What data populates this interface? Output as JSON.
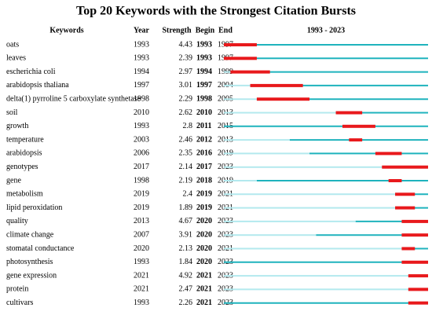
{
  "title": "Top 20 Keywords with the Strongest Citation Bursts",
  "header": {
    "keyword": "Keywords",
    "year": "Year",
    "strength": "Strength",
    "begin": "Begin",
    "end": "End",
    "timeline": "1993 - 2023"
  },
  "timeline": {
    "start": 1993,
    "end": 2023
  },
  "rows": [
    {
      "keyword": "oats",
      "year": 1993,
      "strength": 4.43,
      "begin": 1993,
      "end": 1997
    },
    {
      "keyword": "leaves",
      "year": 1993,
      "strength": 2.39,
      "begin": 1993,
      "end": 1997
    },
    {
      "keyword": "escherichia coli",
      "year": 1994,
      "strength": 2.97,
      "begin": 1994,
      "end": 1999
    },
    {
      "keyword": "arabidopsis thaliana",
      "year": 1997,
      "strength": 3.01,
      "begin": 1997,
      "end": 2004
    },
    {
      "keyword": "delta(1) pyrroline 5 carboxylate synthetase",
      "year": 1998,
      "strength": 2.29,
      "begin": 1998,
      "end": 2005
    },
    {
      "keyword": "soil",
      "year": 2010,
      "strength": 2.62,
      "begin": 2010,
      "end": 2013
    },
    {
      "keyword": "growth",
      "year": 1993,
      "strength": 2.8,
      "begin": 2011,
      "end": 2015
    },
    {
      "keyword": "temperature",
      "year": 2003,
      "strength": 2.46,
      "begin": 2012,
      "end": 2013
    },
    {
      "keyword": "arabidopsis",
      "year": 2006,
      "strength": 2.35,
      "begin": 2016,
      "end": 2019
    },
    {
      "keyword": "genotypes",
      "year": 2017,
      "strength": 2.14,
      "begin": 2017,
      "end": 2023
    },
    {
      "keyword": "gene",
      "year": 1998,
      "strength": 2.19,
      "begin": 2018,
      "end": 2019
    },
    {
      "keyword": "metabolism",
      "year": 2019,
      "strength": 2.4,
      "begin": 2019,
      "end": 2021
    },
    {
      "keyword": "lipid peroxidation",
      "year": 2019,
      "strength": 1.89,
      "begin": 2019,
      "end": 2021
    },
    {
      "keyword": "quality",
      "year": 2013,
      "strength": 4.67,
      "begin": 2020,
      "end": 2023
    },
    {
      "keyword": "climate change",
      "year": 2007,
      "strength": 3.91,
      "begin": 2020,
      "end": 2023
    },
    {
      "keyword": "stomatal conductance",
      "year": 2020,
      "strength": 2.13,
      "begin": 2020,
      "end": 2021
    },
    {
      "keyword": "photosynthesis",
      "year": 1993,
      "strength": 1.84,
      "begin": 2020,
      "end": 2023
    },
    {
      "keyword": "gene expression",
      "year": 2021,
      "strength": 4.92,
      "begin": 2021,
      "end": 2023
    },
    {
      "keyword": "protein",
      "year": 2021,
      "strength": 2.47,
      "begin": 2021,
      "end": 2023
    },
    {
      "keyword": "cultivars",
      "year": 1993,
      "strength": 2.26,
      "begin": 2021,
      "end": 2023
    }
  ]
}
